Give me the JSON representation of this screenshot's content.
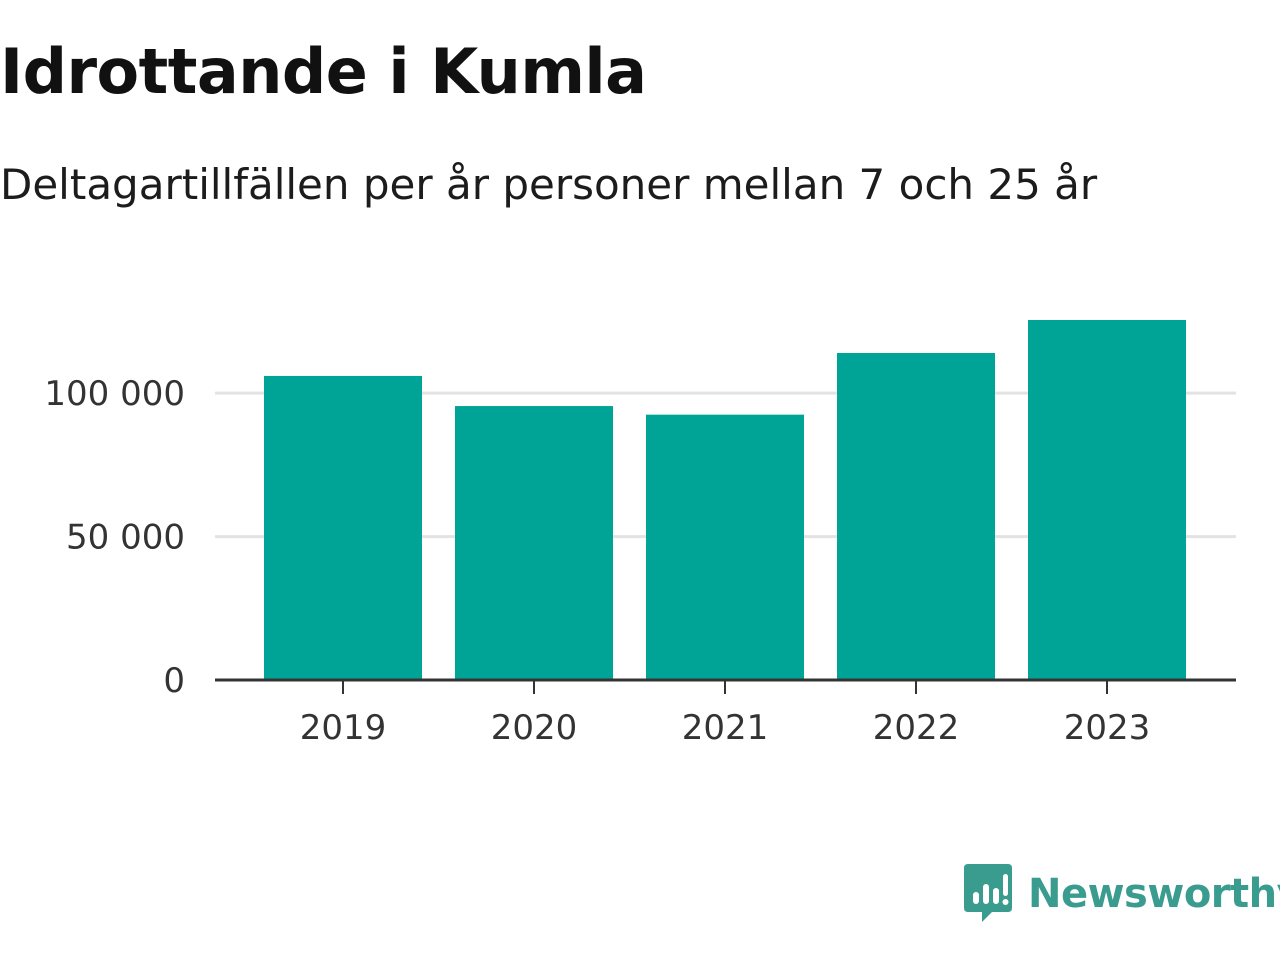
{
  "colors": {
    "bar": "#00a497",
    "grid": "#e3e3e3",
    "axis": "#333333",
    "brand": "#3a9c8e"
  },
  "brand": {
    "name": "Newsworthy",
    "icon": "newsworthy-logo-icon"
  },
  "chart_data": {
    "type": "bar",
    "title": "Idrottande i Kumla",
    "subtitle": "Deltagartillfällen per år personer mellan 7 och 25 år",
    "xlabel": "",
    "ylabel": "",
    "categories": [
      "2019",
      "2020",
      "2021",
      "2022",
      "2023"
    ],
    "values": [
      106000,
      95500,
      92500,
      114000,
      125500
    ],
    "ylim": [
      0,
      125500
    ],
    "yticks": [
      0,
      50000,
      100000
    ],
    "ytick_labels": [
      "0",
      "50 000",
      "100 000"
    ],
    "grid": true,
    "legend": "none"
  }
}
